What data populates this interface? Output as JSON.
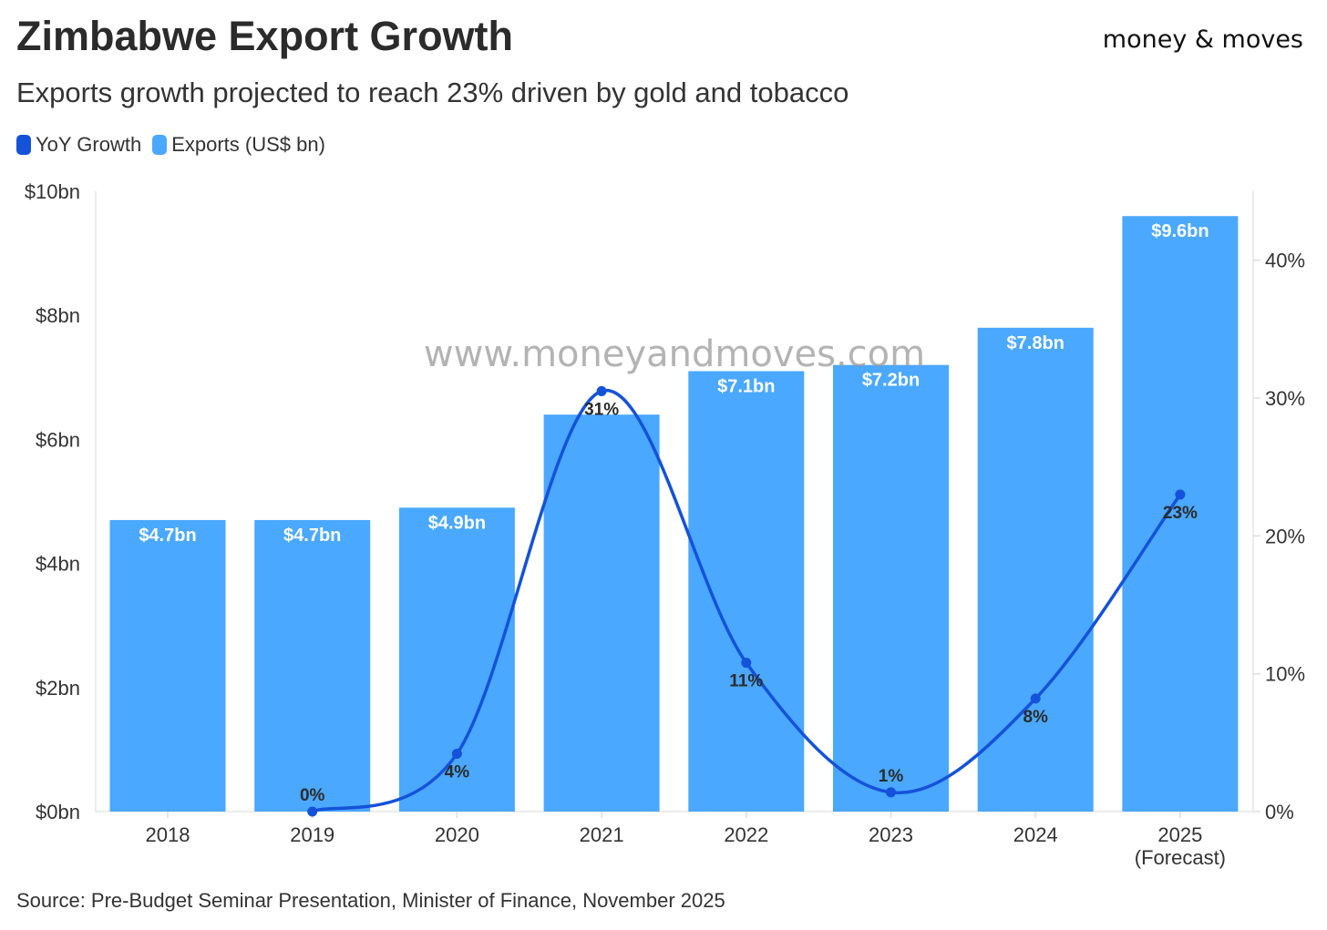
{
  "header": {
    "title": "Zimbabwe Export Growth",
    "subtitle": "Exports growth projected to reach 23% driven by gold and tobacco",
    "brand": "money & moves"
  },
  "legend": {
    "items": [
      {
        "label": "YoY Growth",
        "color": "#1452d9"
      },
      {
        "label": "Exports (US$ bn)",
        "color": "#4aa8ff"
      }
    ]
  },
  "watermark": "www.moneyandmoves.com",
  "source": "Source: Pre-Budget Seminar Presentation, Minister of Finance, November 2025",
  "chart_data": {
    "type": "bar",
    "categories": [
      "2018",
      "2019",
      "2020",
      "2021",
      "2022",
      "2023",
      "2024",
      "2025\n(Forecast)"
    ],
    "series": [
      {
        "name": "Exports (US$ bn)",
        "type": "bar",
        "axis": "left",
        "color": "#4aa8ff",
        "values": [
          4.7,
          4.7,
          4.9,
          6.4,
          7.1,
          7.2,
          7.8,
          9.6
        ],
        "labels": [
          "$4.7bn",
          "$4.7bn",
          "$4.9bn",
          "",
          "$7.1bn",
          "$7.2bn",
          "$7.8bn",
          "$9.6bn"
        ]
      },
      {
        "name": "YoY Growth",
        "type": "line",
        "axis": "right",
        "color": "#1452d9",
        "values": [
          null,
          0,
          4.2,
          30.5,
          10.8,
          1.4,
          8.2,
          23.0
        ],
        "labels": [
          "",
          "0%",
          "4%",
          "31%",
          "11%",
          "1%",
          "8%",
          "23%"
        ]
      }
    ],
    "y_left": {
      "range": [
        0,
        10
      ],
      "ticks": [
        0,
        2,
        4,
        6,
        8,
        10
      ],
      "tick_labels": [
        "$0bn",
        "$2bn",
        "$4bn",
        "$6bn",
        "$8bn",
        "$10bn"
      ]
    },
    "y_right": {
      "range": [
        0,
        45
      ],
      "ticks": [
        0,
        10,
        20,
        30,
        40
      ],
      "tick_labels": [
        "0%",
        "10%",
        "20%",
        "30%",
        "40%"
      ]
    },
    "grid": false,
    "legend_position": "top-left"
  }
}
